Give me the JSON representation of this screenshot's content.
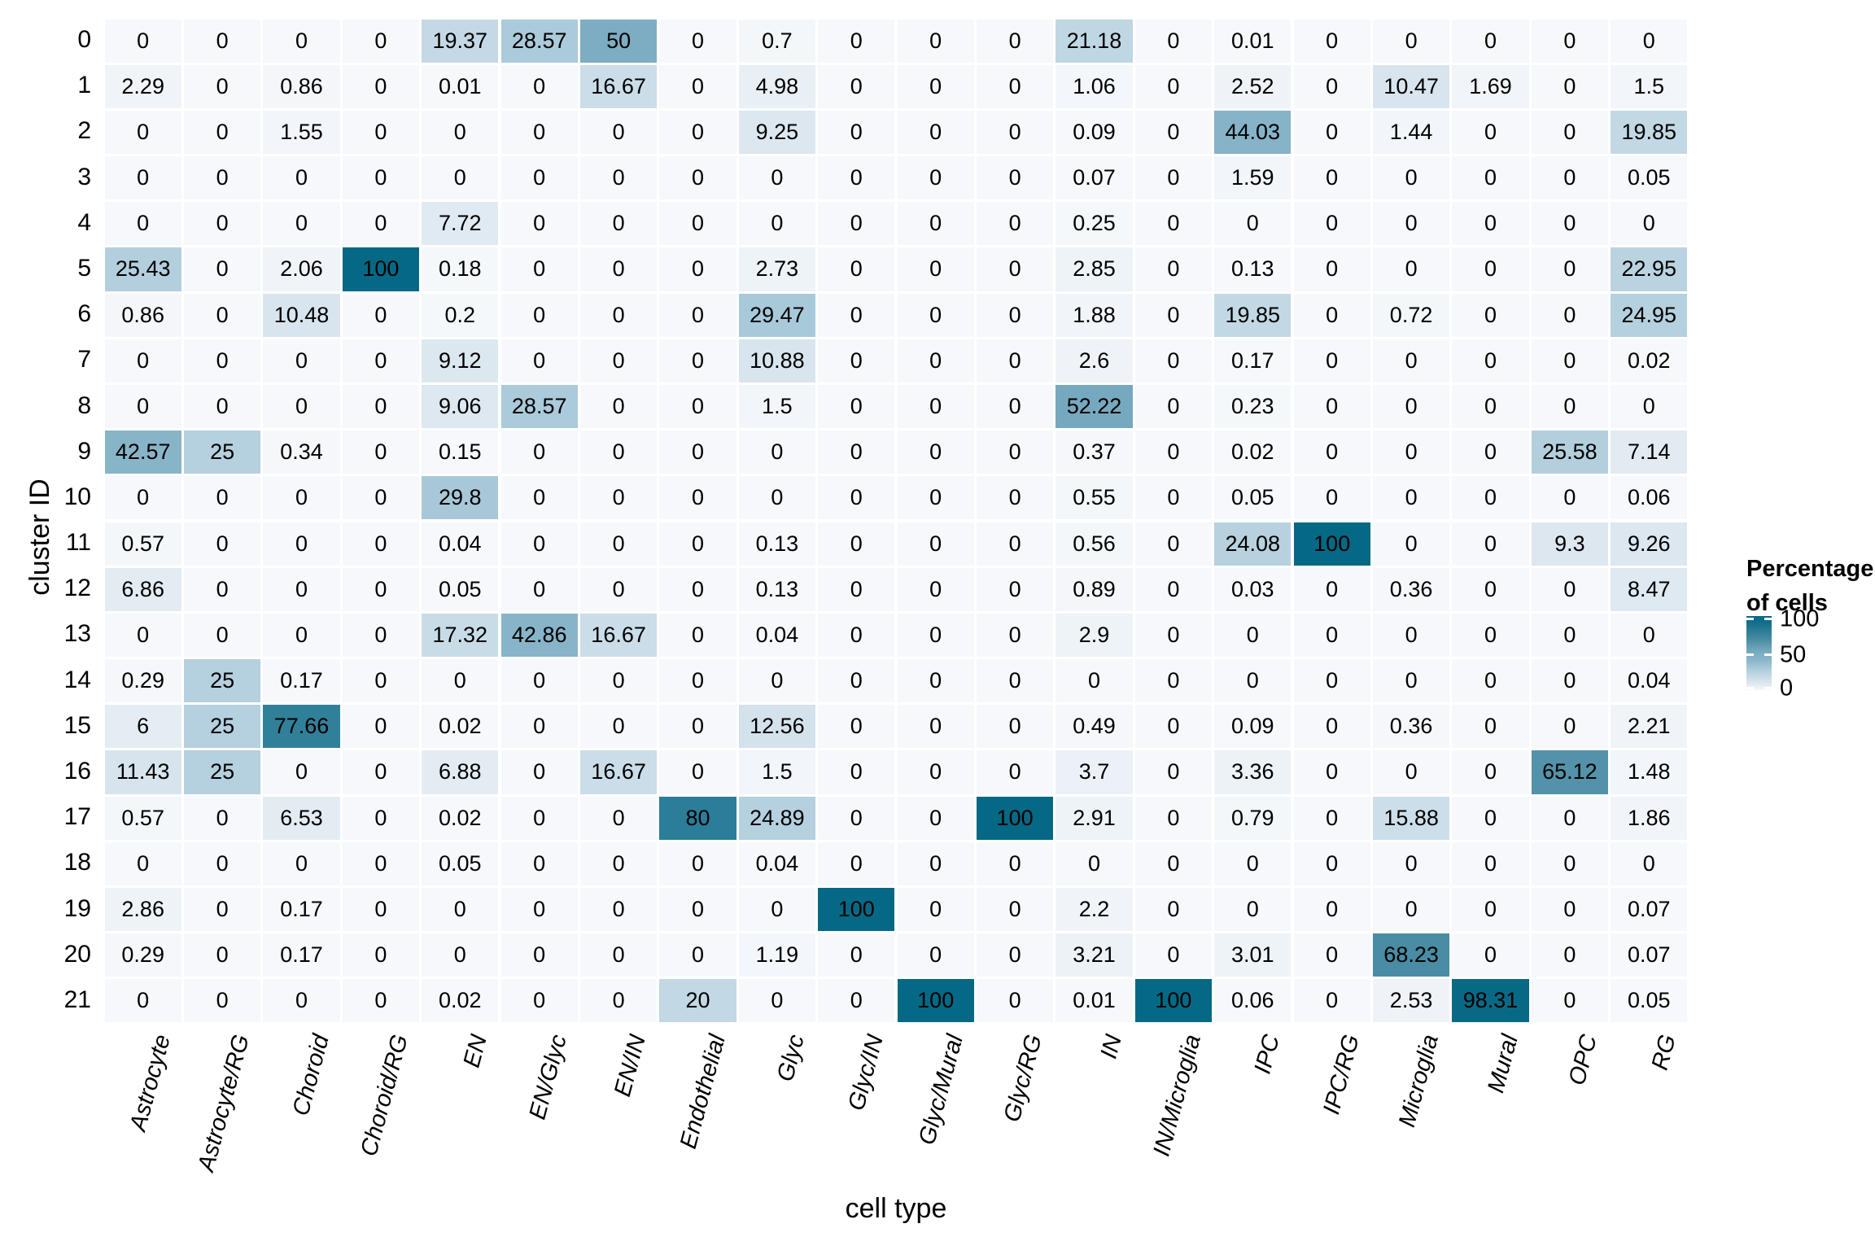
{
  "chart_data": {
    "type": "heatmap",
    "xlabel": "cell type",
    "ylabel": "cluster ID",
    "columns": [
      "Astrocyte",
      "Astrocyte/RG",
      "Choroid",
      "Choroid/RG",
      "EN",
      "EN/Glyc",
      "EN/IN",
      "Endothelial",
      "Glyc",
      "Glyc/IN",
      "Glyc/Mural",
      "Glyc/RG",
      "IN",
      "IN/Microglia",
      "IPC",
      "IPC/RG",
      "Microglia",
      "Mural",
      "OPC",
      "RG"
    ],
    "row_ids": [
      "0",
      "1",
      "2",
      "3",
      "4",
      "5",
      "6",
      "7",
      "8",
      "9",
      "10",
      "11",
      "12",
      "13",
      "14",
      "15",
      "16",
      "17",
      "18",
      "19",
      "20",
      "21"
    ],
    "values": [
      [
        0,
        0,
        0,
        0,
        19.37,
        28.57,
        50,
        0,
        0.7,
        0,
        0,
        0,
        21.18,
        0,
        0.01,
        0,
        0,
        0,
        0,
        0
      ],
      [
        2.29,
        0,
        0.86,
        0,
        0.01,
        0,
        16.67,
        0,
        4.98,
        0,
        0,
        0,
        1.06,
        0,
        2.52,
        0,
        10.47,
        1.69,
        0,
        1.5
      ],
      [
        0,
        0,
        1.55,
        0,
        0,
        0,
        0,
        0,
        9.25,
        0,
        0,
        0,
        0.09,
        0,
        44.03,
        0,
        1.44,
        0,
        0,
        19.85
      ],
      [
        0,
        0,
        0,
        0,
        0,
        0,
        0,
        0,
        0,
        0,
        0,
        0,
        0.07,
        0,
        1.59,
        0,
        0,
        0,
        0,
        0.05
      ],
      [
        0,
        0,
        0,
        0,
        7.72,
        0,
        0,
        0,
        0,
        0,
        0,
        0,
        0.25,
        0,
        0,
        0,
        0,
        0,
        0,
        0
      ],
      [
        25.43,
        0,
        2.06,
        100,
        0.18,
        0,
        0,
        0,
        2.73,
        0,
        0,
        0,
        2.85,
        0,
        0.13,
        0,
        0,
        0,
        0,
        22.95
      ],
      [
        0.86,
        0,
        10.48,
        0,
        0.2,
        0,
        0,
        0,
        29.47,
        0,
        0,
        0,
        1.88,
        0,
        19.85,
        0,
        0.72,
        0,
        0,
        24.95
      ],
      [
        0,
        0,
        0,
        0,
        9.12,
        0,
        0,
        0,
        10.88,
        0,
        0,
        0,
        2.6,
        0,
        0.17,
        0,
        0,
        0,
        0,
        0.02
      ],
      [
        0,
        0,
        0,
        0,
        9.06,
        28.57,
        0,
        0,
        1.5,
        0,
        0,
        0,
        52.22,
        0,
        0.23,
        0,
        0,
        0,
        0,
        0
      ],
      [
        42.57,
        25,
        0.34,
        0,
        0.15,
        0,
        0,
        0,
        0,
        0,
        0,
        0,
        0.37,
        0,
        0.02,
        0,
        0,
        0,
        25.58,
        7.14
      ],
      [
        0,
        0,
        0,
        0,
        29.8,
        0,
        0,
        0,
        0,
        0,
        0,
        0,
        0.55,
        0,
        0.05,
        0,
        0,
        0,
        0,
        0.06
      ],
      [
        0.57,
        0,
        0,
        0,
        0.04,
        0,
        0,
        0,
        0.13,
        0,
        0,
        0,
        0.56,
        0,
        24.08,
        100,
        0,
        0,
        9.3,
        9.26
      ],
      [
        6.86,
        0,
        0,
        0,
        0.05,
        0,
        0,
        0,
        0.13,
        0,
        0,
        0,
        0.89,
        0,
        0.03,
        0,
        0.36,
        0,
        0,
        8.47
      ],
      [
        0,
        0,
        0,
        0,
        17.32,
        42.86,
        16.67,
        0,
        0.04,
        0,
        0,
        0,
        2.9,
        0,
        0,
        0,
        0,
        0,
        0,
        0
      ],
      [
        0.29,
        25,
        0.17,
        0,
        0,
        0,
        0,
        0,
        0,
        0,
        0,
        0,
        0,
        0,
        0,
        0,
        0,
        0,
        0,
        0.04
      ],
      [
        6,
        25,
        77.66,
        0,
        0.02,
        0,
        0,
        0,
        12.56,
        0,
        0,
        0,
        0.49,
        0,
        0.09,
        0,
        0.36,
        0,
        0,
        2.21
      ],
      [
        11.43,
        25,
        0,
        0,
        6.88,
        0,
        16.67,
        0,
        1.5,
        0,
        0,
        0,
        3.7,
        0,
        3.36,
        0,
        0,
        0,
        65.12,
        1.48
      ],
      [
        0.57,
        0,
        6.53,
        0,
        0.02,
        0,
        0,
        80,
        24.89,
        0,
        0,
        100,
        2.91,
        0,
        0.79,
        0,
        15.88,
        0,
        0,
        1.86
      ],
      [
        0,
        0,
        0,
        0,
        0.05,
        0,
        0,
        0,
        0.04,
        0,
        0,
        0,
        0,
        0,
        0,
        0,
        0,
        0,
        0,
        0
      ],
      [
        2.86,
        0,
        0.17,
        0,
        0,
        0,
        0,
        0,
        0,
        100,
        0,
        0,
        2.2,
        0,
        0,
        0,
        0,
        0,
        0,
        0.07
      ],
      [
        0.29,
        0,
        0.17,
        0,
        0,
        0,
        0,
        0,
        1.19,
        0,
        0,
        0,
        3.21,
        0,
        3.01,
        0,
        68.23,
        0,
        0,
        0.07
      ],
      [
        0,
        0,
        0,
        0,
        0.02,
        0,
        0,
        20,
        0,
        0,
        100,
        0,
        0.01,
        100,
        0.06,
        0,
        2.53,
        98.31,
        0,
        0.05
      ]
    ],
    "value_range": [
      0,
      100
    ],
    "legend": {
      "title_lines": [
        "Percentage",
        "of cells"
      ],
      "ticks": [
        100,
        50,
        0
      ]
    },
    "colormap_stops": [
      [
        0,
        "#f6f8fb"
      ],
      [
        10,
        "#dae6ef"
      ],
      [
        20,
        "#c2d8e4"
      ],
      [
        30,
        "#a7c8d8"
      ],
      [
        40,
        "#8cb7ca"
      ],
      [
        50,
        "#7cadc2"
      ],
      [
        60,
        "#629cb4"
      ],
      [
        70,
        "#44899f"
      ],
      [
        80,
        "#2b7d99"
      ],
      [
        90,
        "#14708b"
      ],
      [
        100,
        "#056884"
      ]
    ],
    "grid_gap_color": "#ffffff",
    "text_color": "#000000"
  }
}
